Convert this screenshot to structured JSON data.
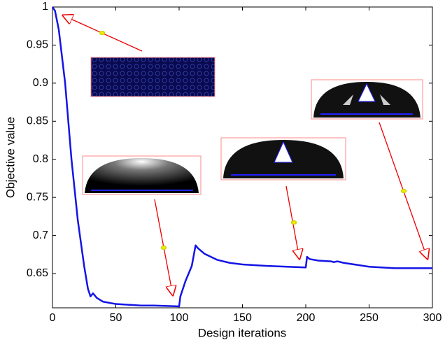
{
  "chart_data": {
    "type": "line",
    "x_label": "Design iterations",
    "y_label": "Objective value",
    "xlim": [
      0,
      300
    ],
    "xticks": [
      0,
      50,
      100,
      150,
      200,
      250,
      300
    ],
    "ylim": [
      0.605,
      1
    ],
    "yticks": [
      0.65,
      0.7,
      0.75,
      0.8,
      0.85,
      0.9,
      0.95,
      1
    ],
    "series": [
      {
        "name": "Objective value",
        "color": "#1414e6",
        "x": [
          0,
          2,
          5,
          10,
          15,
          20,
          25,
          28,
          30,
          31,
          32,
          35,
          40,
          50,
          60,
          70,
          80,
          99,
          100,
          101,
          105,
          110,
          113,
          115,
          120,
          130,
          140,
          150,
          170,
          199,
          200,
          201,
          203,
          210,
          220,
          222,
          225,
          230,
          250,
          270,
          300
        ],
        "values": [
          1,
          0.995,
          0.97,
          0.9,
          0.8,
          0.72,
          0.66,
          0.63,
          0.62,
          0.622,
          0.624,
          0.618,
          0.613,
          0.61,
          0.609,
          0.608,
          0.608,
          0.607,
          0.607,
          0.62,
          0.64,
          0.66,
          0.687,
          0.683,
          0.676,
          0.668,
          0.664,
          0.662,
          0.66,
          0.658,
          0.658,
          0.672,
          0.669,
          0.667,
          0.666,
          0.665,
          0.666,
          0.664,
          0.659,
          0.657,
          0.657
        ]
      }
    ]
  }
}
